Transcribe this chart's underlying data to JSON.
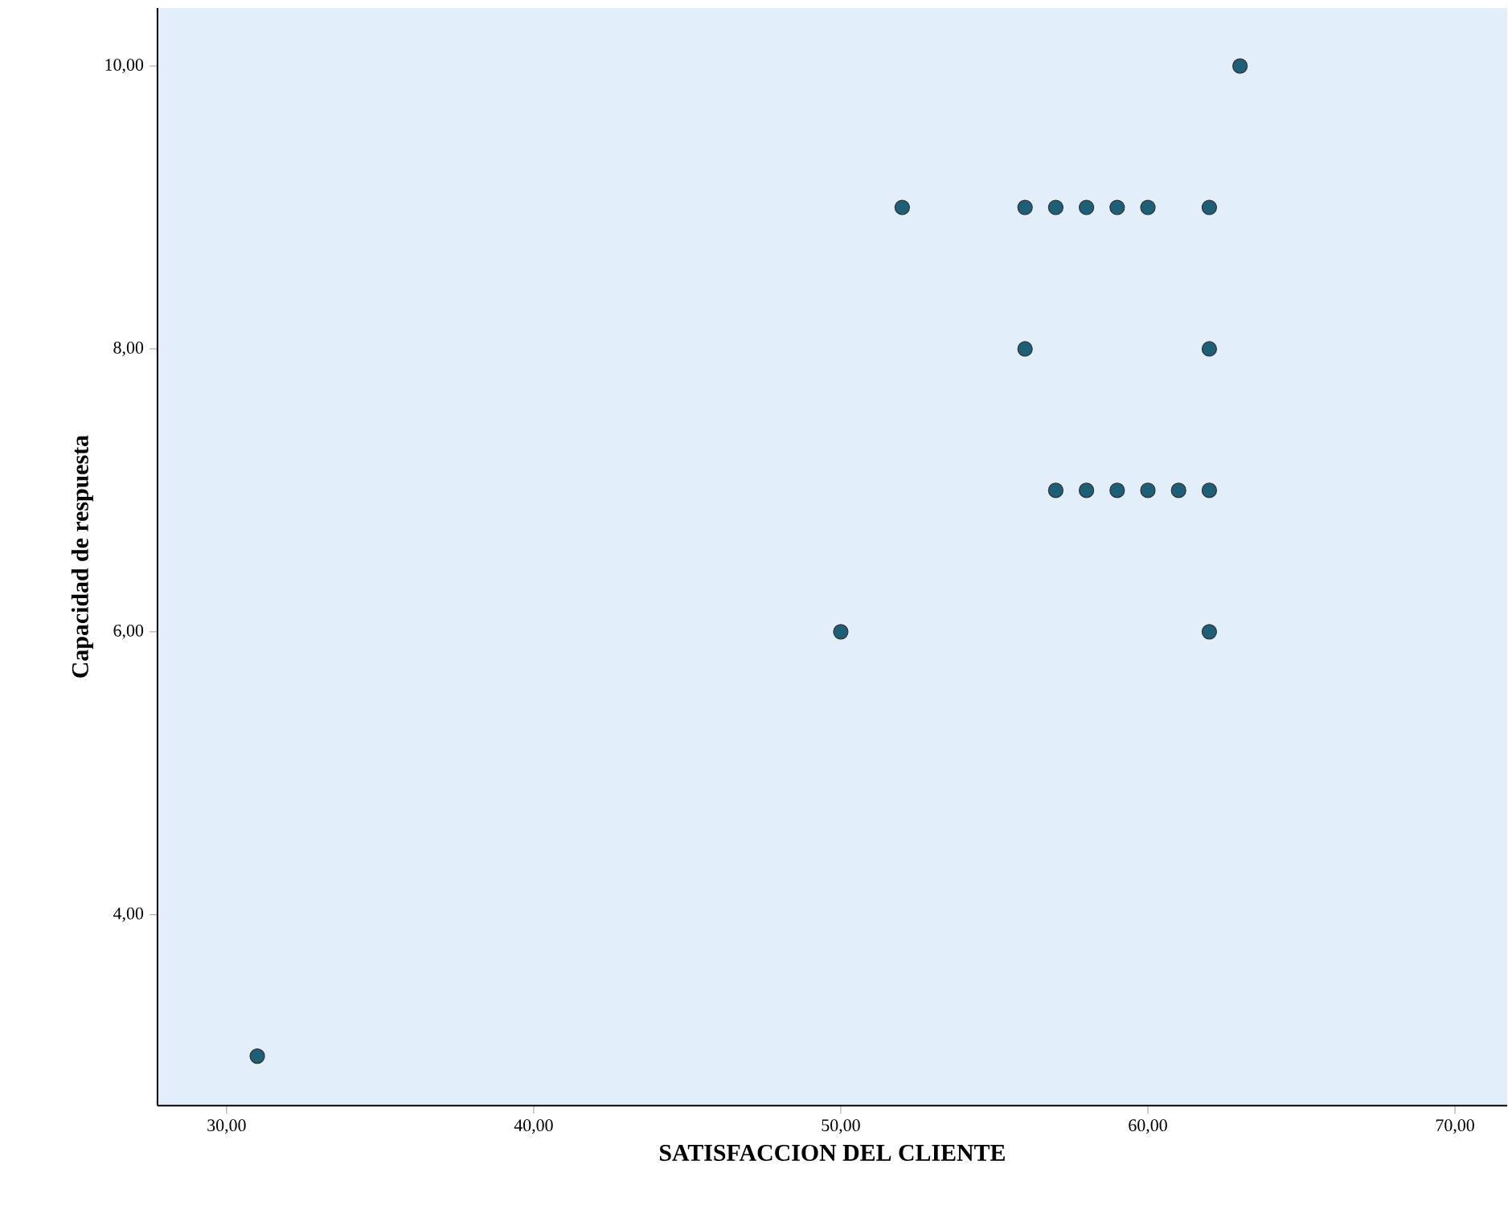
{
  "chart_data": {
    "type": "scatter",
    "xlabel": "SATISFACCION DEL CLIENTE",
    "ylabel": "Capacidad de respuesta",
    "x": [
      63,
      52,
      56,
      57,
      58,
      59,
      60,
      62,
      56,
      62,
      57,
      58,
      59,
      60,
      61,
      62,
      50,
      62,
      31
    ],
    "values": [
      10,
      9,
      9,
      9,
      9,
      9,
      9,
      9,
      8,
      8,
      7,
      7,
      7,
      7,
      7,
      7,
      6,
      6,
      3
    ],
    "color": "#1e5f78",
    "xlim": [
      27.75,
      71.7
    ],
    "ylim": [
      2.65,
      10.41
    ],
    "xticks": [
      {
        "value": 30,
        "label": "30,00"
      },
      {
        "value": 40,
        "label": "40,00"
      },
      {
        "value": 50,
        "label": "50,00"
      },
      {
        "value": 60,
        "label": "60,00"
      },
      {
        "value": 70,
        "label": "70,00"
      }
    ],
    "yticks": [
      {
        "value": 4,
        "label": "4,00"
      },
      {
        "value": 6,
        "label": "6,00"
      },
      {
        "value": 8,
        "label": "8,00"
      },
      {
        "value": 10,
        "label": "10,00"
      }
    ],
    "grid": false
  }
}
